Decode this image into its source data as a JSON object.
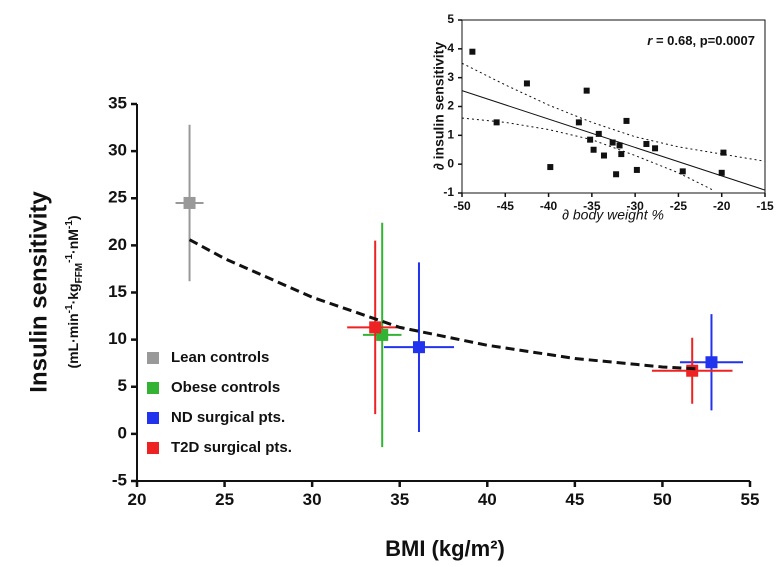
{
  "chart_data": [
    {
      "type": "scatter",
      "x_label": "BMI (kg/m²)",
      "y_label": "Insulin sensitivity",
      "y_unit": [
        "(mL·min",
        "-1",
        "·kg",
        "FFM",
        "-1",
        "·nM",
        "-1",
        ")"
      ],
      "xlim": [
        20,
        55
      ],
      "xticks": [
        20,
        25,
        30,
        35,
        40,
        45,
        50,
        55
      ],
      "ylim": [
        -5,
        35
      ],
      "yticks": [
        -5,
        0,
        5,
        10,
        15,
        20,
        25,
        30,
        35
      ],
      "legend": "lower left",
      "series": [
        {
          "name": "Lean controls",
          "color": "#999999",
          "x": [
            23
          ],
          "values": [
            24.5
          ],
          "xerr": [
            0.8
          ],
          "yerr": [
            8.3
          ]
        },
        {
          "name": "Obese controls",
          "color": "#33b233",
          "x": [
            34
          ],
          "values": [
            10.5
          ],
          "xerr": [
            1.1
          ],
          "yerr": [
            11.9
          ]
        },
        {
          "name": "ND surgical pts.",
          "color": "#2233ee",
          "x": [
            36.1,
            52.8
          ],
          "values": [
            9.2,
            7.6
          ],
          "xerr": [
            2,
            1.8
          ],
          "yerr": [
            9,
            5.1
          ]
        },
        {
          "name": "T2D surgical pts.",
          "color": "#ee2222",
          "x": [
            33.6,
            51.7
          ],
          "values": [
            11.3,
            6.7
          ],
          "xerr": [
            1.6,
            2.3
          ],
          "yerr": [
            9.2,
            3.5
          ]
        },
        {
          "color": "#111111",
          "line_style": "dashed",
          "x": [
            23,
            25,
            30,
            35,
            40,
            45,
            50,
            52
          ],
          "values": [
            20.6,
            18.6,
            14.5,
            11.3,
            9.4,
            8.0,
            7.1,
            6.9
          ]
        }
      ]
    },
    {
      "type": "scatter",
      "x_label": "∂ body weight %",
      "y_label": "∂ insulin sensitivity",
      "annotation": [
        "r",
        " = 0.68, p=0.0007"
      ],
      "xlim": [
        -50,
        -15
      ],
      "xticks": [
        -50,
        -45,
        -40,
        -35,
        -30,
        -25,
        -20,
        -15
      ],
      "ylim": [
        -1,
        5
      ],
      "yticks": [
        -1,
        0,
        1,
        2,
        3,
        4,
        5
      ],
      "series": [
        {
          "color": "#111111",
          "x": [
            -48.8,
            -46,
            -42.5,
            -39.8,
            -36.5,
            -35.6,
            -35.2,
            -34.8,
            -34.2,
            -33.6,
            -32.6,
            -32.2,
            -31.8,
            -31.6,
            -31,
            -29.8,
            -28.7,
            -27.7,
            -24.5,
            -20,
            -19.8
          ],
          "values": [
            3.9,
            1.45,
            2.8,
            -0.1,
            1.45,
            2.55,
            0.85,
            0.5,
            1.05,
            0.3,
            0.75,
            -0.35,
            0.65,
            0.35,
            1.5,
            -0.2,
            0.7,
            0.55,
            -0.25,
            -0.3,
            0.4
          ]
        },
        {
          "color": "#111111",
          "line_style": "solid",
          "x": [
            -50,
            -15
          ],
          "values": [
            2.55,
            -0.9
          ]
        },
        {
          "color": "#111111",
          "line_style": "dotted",
          "x": [
            -50,
            -45,
            -40,
            -35,
            -30,
            -25,
            -20,
            -15
          ],
          "values": [
            3.5,
            2.75,
            2.05,
            1.45,
            0.95,
            0.6,
            0.35,
            0.1
          ]
        },
        {
          "color": "#111111",
          "line_style": "dotted",
          "x": [
            -50,
            -45,
            -40,
            -35,
            -30,
            -25,
            -21
          ],
          "values": [
            1.6,
            1.45,
            1.2,
            0.85,
            0.3,
            -0.3,
            -0.9
          ]
        }
      ]
    }
  ]
}
